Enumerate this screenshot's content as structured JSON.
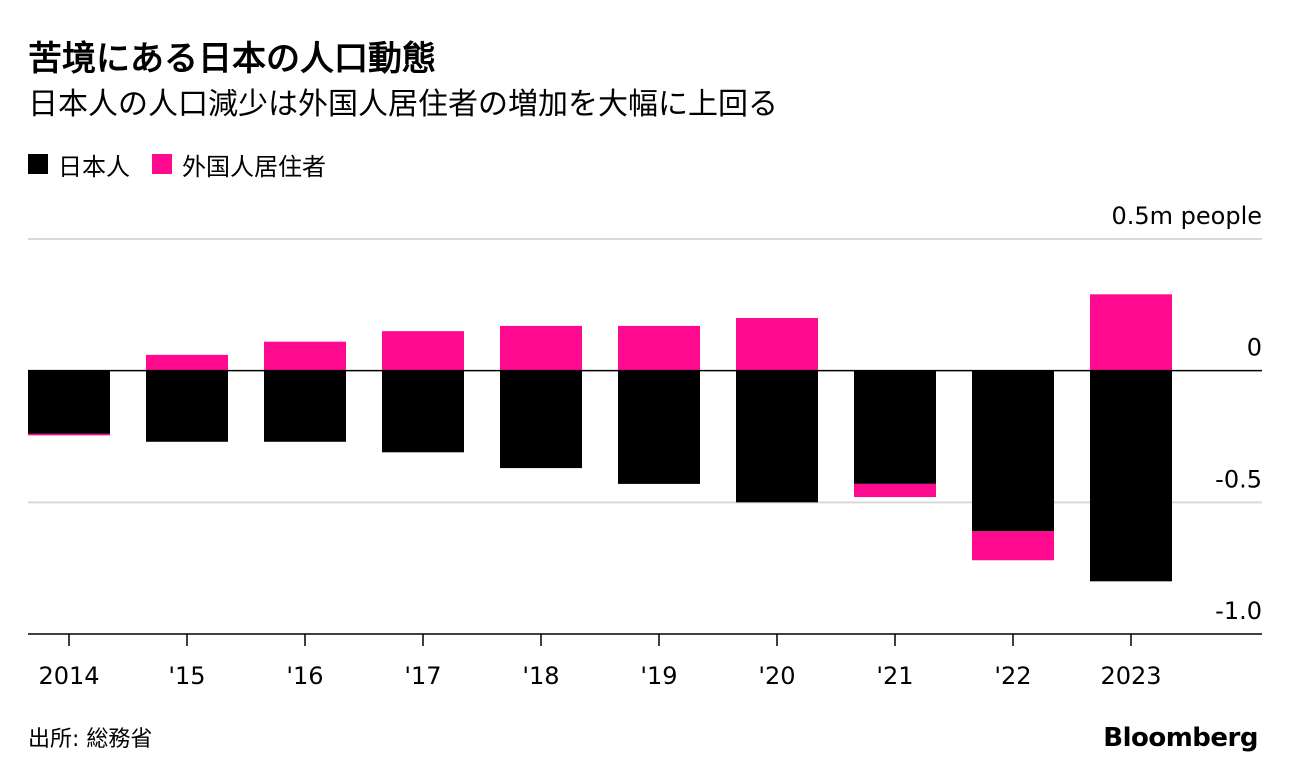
{
  "header": {
    "title": "苦境にある日本の人口動態",
    "subtitle": "日本人の人口減少は外国人居住者の増加を大幅に上回る"
  },
  "legend": [
    {
      "label": "日本人",
      "color": "#000000"
    },
    {
      "label": "外国人居住者",
      "color": "#ff0a8e"
    }
  ],
  "footer": {
    "source": "出所: 総務省",
    "brand": "Bloomberg"
  },
  "colors": {
    "japanese": "#000000",
    "foreign": "#ff0a8e",
    "grid": "#d9d9d9",
    "axis": "#000000"
  },
  "chart_data": {
    "type": "bar",
    "stacking": "diverging",
    "title": "苦境にある日本の人口動態",
    "subtitle": "日本人の人口減少は外国人居住者の増加を大幅に上回る",
    "unit_label": "0.5m people",
    "categories": [
      "2014",
      "'15",
      "'16",
      "'17",
      "'18",
      "'19",
      "'20",
      "'21",
      "'22",
      "'23"
    ],
    "x_tick_labels": [
      "2014",
      "'15",
      "'16",
      "'17",
      "'18",
      "'19",
      "'20",
      "'21",
      "'22",
      "2023"
    ],
    "y_ticks": [
      {
        "value": 0.5,
        "label": "0.5m people"
      },
      {
        "value": 0,
        "label": "0"
      },
      {
        "value": -0.5,
        "label": "-0.5"
      },
      {
        "value": -1.0,
        "label": "-1.0"
      }
    ],
    "ylim": [
      -1.0,
      0.5
    ],
    "xlabel": "",
    "ylabel": "",
    "grid": true,
    "legend_position": "top-left",
    "series": [
      {
        "name": "日本人",
        "values": [
          -0.24,
          -0.27,
          -0.27,
          -0.31,
          -0.37,
          -0.43,
          -0.5,
          -0.43,
          -0.61,
          -0.8
        ]
      },
      {
        "name": "外国人居住者",
        "values": [
          -0.005,
          0.06,
          0.11,
          0.15,
          0.17,
          0.17,
          0.2,
          -0.05,
          -0.11,
          0.29
        ]
      }
    ]
  }
}
